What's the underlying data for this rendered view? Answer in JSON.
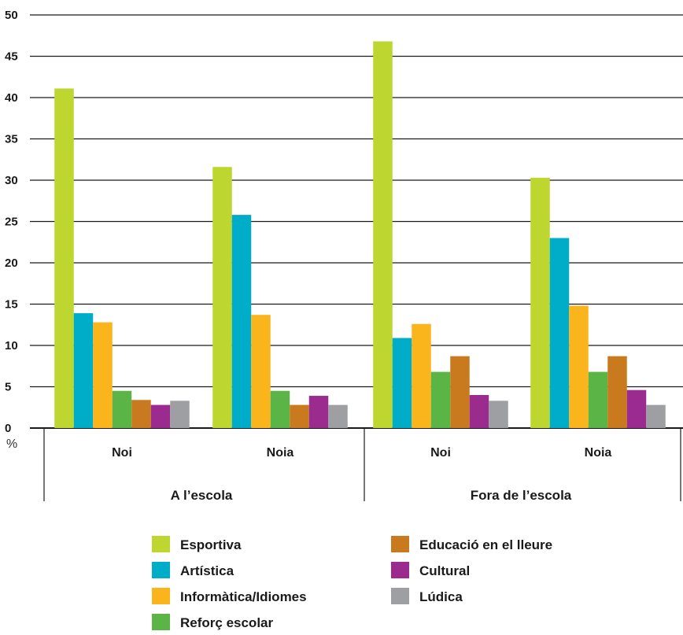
{
  "chart_data": {
    "type": "bar",
    "unit_label": "%",
    "ylim": [
      0,
      50
    ],
    "yticks": [
      "0",
      "5",
      "10",
      "15",
      "20",
      "25",
      "30",
      "35",
      "40",
      "45",
      "50"
    ],
    "grid": true,
    "legend_position": "bottom",
    "groups": [
      {
        "label": "A l’escola",
        "categories": [
          "Noi",
          "Noia"
        ]
      },
      {
        "label": "Fora de l’escola",
        "categories": [
          "Noi",
          "Noia"
        ]
      }
    ],
    "categories": [
      "Noi",
      "Noia",
      "Noi",
      "Noia"
    ],
    "series": [
      {
        "name": "Esportiva",
        "color": "#bed630",
        "values": [
          41.1,
          31.6,
          46.8,
          30.3
        ]
      },
      {
        "name": "Artística",
        "color": "#00adc8",
        "values": [
          13.9,
          25.8,
          10.9,
          23.0
        ]
      },
      {
        "name": "Informàtica/Idiomes",
        "color": "#fbb51c",
        "values": [
          12.8,
          13.7,
          12.6,
          14.8
        ]
      },
      {
        "name": "Reforç escolar",
        "color": "#5bb446",
        "values": [
          4.5,
          4.5,
          6.8,
          6.8
        ]
      },
      {
        "name": "Educació en el lleure",
        "color": "#c97a1e",
        "values": [
          3.4,
          2.8,
          8.7,
          8.7
        ]
      },
      {
        "name": "Cultural",
        "color": "#9b2b8e",
        "values": [
          2.8,
          3.9,
          4.0,
          4.6
        ]
      },
      {
        "name": "Lúdica",
        "color": "#9d9fa2",
        "values": [
          3.3,
          2.8,
          3.3,
          2.8
        ]
      }
    ]
  }
}
